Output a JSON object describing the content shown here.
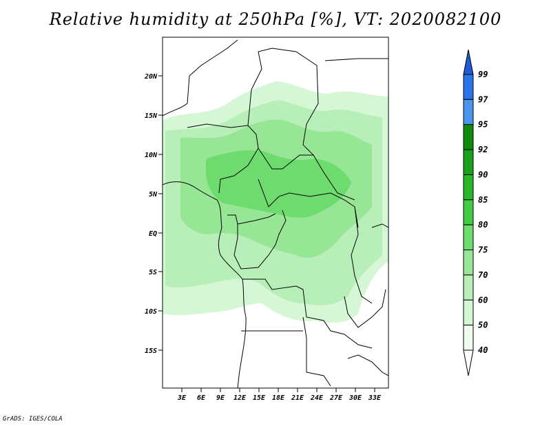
{
  "title": "Relative humidity at 250hPa [%], VT: 2020082100",
  "credit": "GrADS: IGES/COLA",
  "map": {
    "lat_labels": [
      "20N",
      "15N",
      "10N",
      "5N",
      "EQ",
      "5S",
      "10S",
      "15S"
    ],
    "lon_labels": [
      "3E",
      "6E",
      "9E",
      "12E",
      "15E",
      "18E",
      "21E",
      "24E",
      "27E",
      "30E",
      "33E"
    ]
  },
  "colorbar": {
    "labels": [
      "99",
      "97",
      "95",
      "92",
      "90",
      "85",
      "80",
      "75",
      "70",
      "60",
      "50",
      "40"
    ],
    "colors": [
      "#1f5bd6",
      "#2b73e8",
      "#4a96ec",
      "#0f8a0f",
      "#1ba11b",
      "#2ab82a",
      "#44cc44",
      "#6edb6e",
      "#96e696",
      "#b8efb8",
      "#d6f7d6",
      "#eefcee"
    ]
  }
}
